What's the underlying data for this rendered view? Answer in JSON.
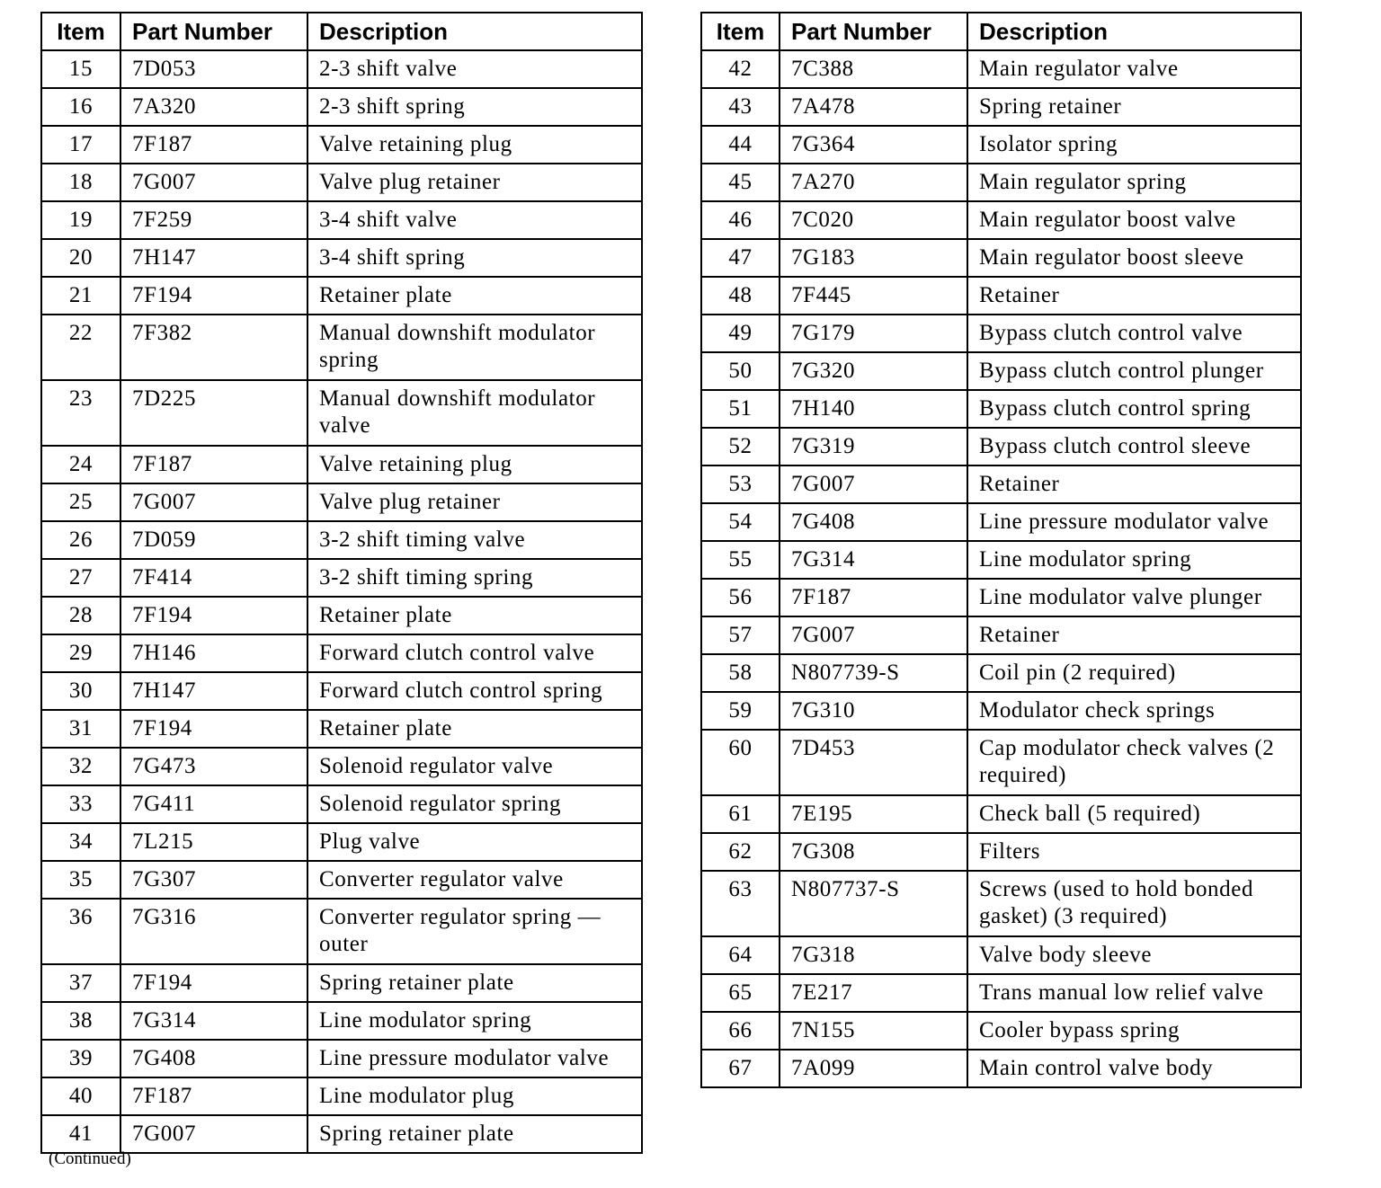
{
  "headers": {
    "item": "Item",
    "part_number": "Part Number",
    "description": "Description"
  },
  "left_table": [
    {
      "item": "15",
      "part": "7D053",
      "desc": "2-3 shift valve"
    },
    {
      "item": "16",
      "part": "7A320",
      "desc": "2-3 shift spring"
    },
    {
      "item": "17",
      "part": "7F187",
      "desc": "Valve retaining plug"
    },
    {
      "item": "18",
      "part": "7G007",
      "desc": "Valve plug retainer"
    },
    {
      "item": "19",
      "part": "7F259",
      "desc": "3-4 shift valve"
    },
    {
      "item": "20",
      "part": "7H147",
      "desc": "3-4 shift spring"
    },
    {
      "item": "21",
      "part": "7F194",
      "desc": "Retainer plate"
    },
    {
      "item": "22",
      "part": "7F382",
      "desc": "Manual downshift modulator spring",
      "double": true
    },
    {
      "item": "23",
      "part": "7D225",
      "desc": "Manual downshift modulator valve",
      "double": true
    },
    {
      "item": "24",
      "part": "7F187",
      "desc": "Valve retaining plug"
    },
    {
      "item": "25",
      "part": "7G007",
      "desc": "Valve plug retainer"
    },
    {
      "item": "26",
      "part": "7D059",
      "desc": "3-2 shift timing valve"
    },
    {
      "item": "27",
      "part": "7F414",
      "desc": "3-2 shift timing spring"
    },
    {
      "item": "28",
      "part": "7F194",
      "desc": "Retainer plate"
    },
    {
      "item": "29",
      "part": "7H146",
      "desc": "Forward clutch control valve"
    },
    {
      "item": "30",
      "part": "7H147",
      "desc": "Forward clutch control spring"
    },
    {
      "item": "31",
      "part": "7F194",
      "desc": "Retainer plate"
    },
    {
      "item": "32",
      "part": "7G473",
      "desc": "Solenoid regulator valve"
    },
    {
      "item": "33",
      "part": "7G411",
      "desc": "Solenoid regulator spring"
    },
    {
      "item": "34",
      "part": "7L215",
      "desc": "Plug valve"
    },
    {
      "item": "35",
      "part": "7G307",
      "desc": "Converter regulator valve"
    },
    {
      "item": "36",
      "part": "7G316",
      "desc": "Converter regulator spring — outer",
      "double": true
    },
    {
      "item": "37",
      "part": "7F194",
      "desc": "Spring retainer plate"
    },
    {
      "item": "38",
      "part": "7G314",
      "desc": "Line modulator spring"
    },
    {
      "item": "39",
      "part": "7G408",
      "desc": "Line pressure modulator valve"
    },
    {
      "item": "40",
      "part": "7F187",
      "desc": "Line modulator plug"
    },
    {
      "item": "41",
      "part": "7G007",
      "desc": "Spring retainer plate"
    }
  ],
  "right_table": [
    {
      "item": "42",
      "part": "7C388",
      "desc": "Main regulator valve"
    },
    {
      "item": "43",
      "part": "7A478",
      "desc": "Spring retainer"
    },
    {
      "item": "44",
      "part": "7G364",
      "desc": "Isolator spring"
    },
    {
      "item": "45",
      "part": "7A270",
      "desc": "Main regulator spring"
    },
    {
      "item": "46",
      "part": "7C020",
      "desc": "Main regulator boost valve"
    },
    {
      "item": "47",
      "part": "7G183",
      "desc": "Main regulator boost sleeve"
    },
    {
      "item": "48",
      "part": "7F445",
      "desc": "Retainer"
    },
    {
      "item": "49",
      "part": "7G179",
      "desc": "Bypass clutch control valve"
    },
    {
      "item": "50",
      "part": "7G320",
      "desc": "Bypass clutch control plunger"
    },
    {
      "item": "51",
      "part": "7H140",
      "desc": "Bypass clutch control spring"
    },
    {
      "item": "52",
      "part": "7G319",
      "desc": "Bypass clutch control sleeve"
    },
    {
      "item": "53",
      "part": "7G007",
      "desc": "Retainer"
    },
    {
      "item": "54",
      "part": "7G408",
      "desc": "Line pressure modulator valve"
    },
    {
      "item": "55",
      "part": "7G314",
      "desc": "Line modulator spring"
    },
    {
      "item": "56",
      "part": "7F187",
      "desc": "Line modulator valve plunger"
    },
    {
      "item": "57",
      "part": "7G007",
      "desc": "Retainer"
    },
    {
      "item": "58",
      "part": "N807739-S",
      "desc": "Coil pin (2 required)"
    },
    {
      "item": "59",
      "part": "7G310",
      "desc": "Modulator check springs"
    },
    {
      "item": "60",
      "part": "7D453",
      "desc": "Cap modulator check valves (2 required)",
      "double": true
    },
    {
      "item": "61",
      "part": "7E195",
      "desc": "Check ball (5 required)"
    },
    {
      "item": "62",
      "part": "7G308",
      "desc": "Filters"
    },
    {
      "item": "63",
      "part": "N807737-S",
      "desc": "Screws (used to hold bonded gasket) (3 required)",
      "double": true
    },
    {
      "item": "64",
      "part": "7G318",
      "desc": "Valve body sleeve"
    },
    {
      "item": "65",
      "part": "7E217",
      "desc": "Trans manual low relief valve"
    },
    {
      "item": "66",
      "part": "7N155",
      "desc": "Cooler bypass spring"
    },
    {
      "item": "67",
      "part": "7A099",
      "desc": "Main control valve body"
    }
  ],
  "footer_note": "(Continued)"
}
